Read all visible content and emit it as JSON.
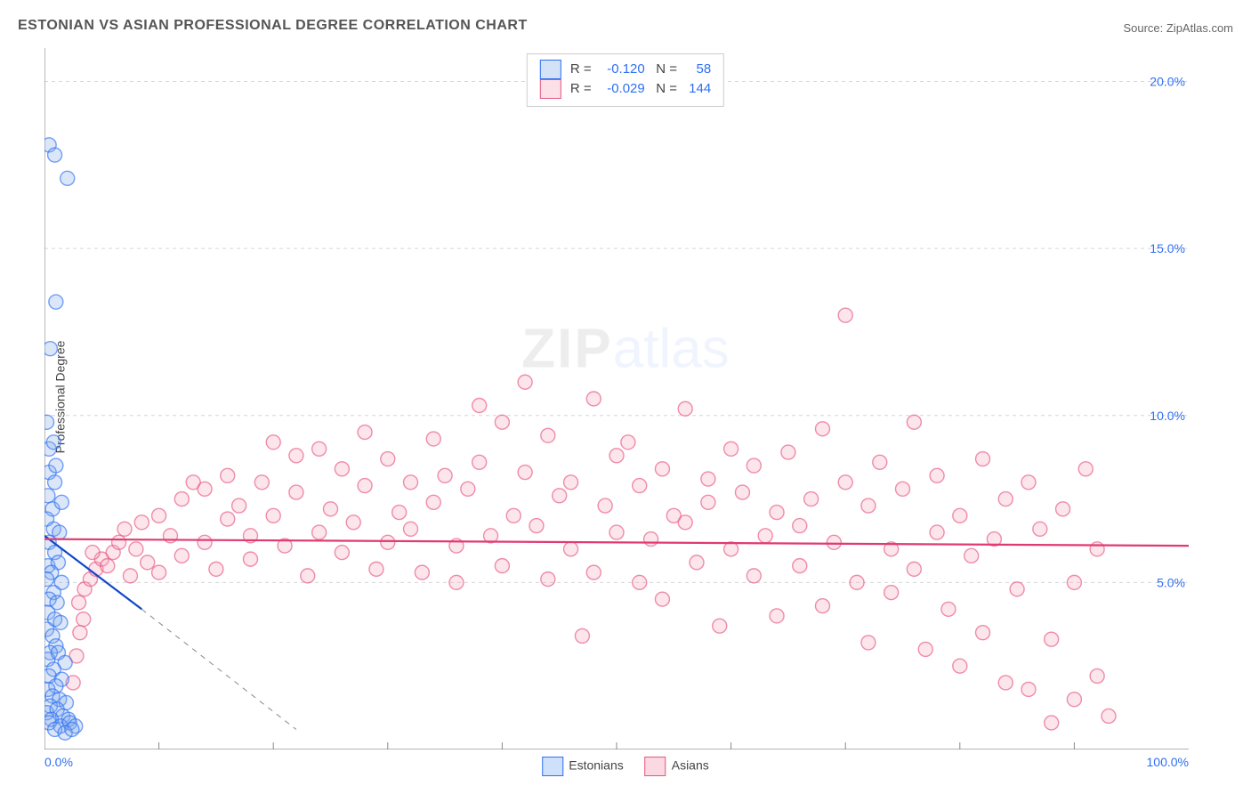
{
  "title": "ESTONIAN VS ASIAN PROFESSIONAL DEGREE CORRELATION CHART",
  "source_label": "Source: ZipAtlas.com",
  "ylabel": "Professional Degree",
  "watermark_zip": "ZIP",
  "watermark_atlas": "atlas",
  "chart": {
    "type": "scatter",
    "background_color": "#ffffff",
    "grid_color": "#d6d6d6",
    "axis_color": "#888888",
    "xlim": [
      0,
      100
    ],
    "ylim": [
      0,
      21
    ],
    "xtick_labels": [
      "0.0%",
      "100.0%"
    ],
    "xtick_positions": [
      0,
      100
    ],
    "xtick_minor": [
      10,
      20,
      30,
      40,
      50,
      60,
      70,
      80,
      90
    ],
    "ytick_labels": [
      "5.0%",
      "10.0%",
      "15.0%",
      "20.0%"
    ],
    "ytick_positions": [
      5,
      10,
      15,
      20
    ],
    "marker_radius": 8,
    "label_fontsize": 14,
    "tick_color": "#2e6ff2",
    "series": [
      {
        "name": "Estonians",
        "fill_color": "#7da9e8",
        "stroke_color": "#2e6ff2",
        "R": "-0.120",
        "N": "58",
        "trend": {
          "x1": 0,
          "y1": 6.4,
          "x2": 8.5,
          "y2": 4.2,
          "color": "#1147c9",
          "width": 2.4
        },
        "trend_dashed": {
          "x1": 8.5,
          "y1": 4.2,
          "x2": 22,
          "y2": 0.6
        },
        "points": [
          [
            0.4,
            18.1
          ],
          [
            0.9,
            17.8
          ],
          [
            2.0,
            17.1
          ],
          [
            1.0,
            13.4
          ],
          [
            0.5,
            12.0
          ],
          [
            0.2,
            9.8
          ],
          [
            0.4,
            9.0
          ],
          [
            0.8,
            9.2
          ],
          [
            0.4,
            8.3
          ],
          [
            1.0,
            8.5
          ],
          [
            0.9,
            8.0
          ],
          [
            0.3,
            7.6
          ],
          [
            0.7,
            7.2
          ],
          [
            1.5,
            7.4
          ],
          [
            0.2,
            6.9
          ],
          [
            0.8,
            6.6
          ],
          [
            1.3,
            6.5
          ],
          [
            0.4,
            6.2
          ],
          [
            0.9,
            5.9
          ],
          [
            0.3,
            5.5
          ],
          [
            1.2,
            5.6
          ],
          [
            0.6,
            5.3
          ],
          [
            0.2,
            5.1
          ],
          [
            1.5,
            5.0
          ],
          [
            0.8,
            4.7
          ],
          [
            0.4,
            4.5
          ],
          [
            1.1,
            4.4
          ],
          [
            0.3,
            4.1
          ],
          [
            0.9,
            3.9
          ],
          [
            1.4,
            3.8
          ],
          [
            0.2,
            3.6
          ],
          [
            0.7,
            3.4
          ],
          [
            1.0,
            3.1
          ],
          [
            0.5,
            2.9
          ],
          [
            0.3,
            2.7
          ],
          [
            1.2,
            2.9
          ],
          [
            1.8,
            2.6
          ],
          [
            0.8,
            2.4
          ],
          [
            0.4,
            2.2
          ],
          [
            1.5,
            2.1
          ],
          [
            1.0,
            1.9
          ],
          [
            0.3,
            1.8
          ],
          [
            0.7,
            1.6
          ],
          [
            1.3,
            1.5
          ],
          [
            1.9,
            1.4
          ],
          [
            0.5,
            1.3
          ],
          [
            0.2,
            1.1
          ],
          [
            1.1,
            1.2
          ],
          [
            1.6,
            1.0
          ],
          [
            2.1,
            0.9
          ],
          [
            0.6,
            0.9
          ],
          [
            0.4,
            0.8
          ],
          [
            1.4,
            0.7
          ],
          [
            2.2,
            0.8
          ],
          [
            2.7,
            0.7
          ],
          [
            0.9,
            0.6
          ],
          [
            1.8,
            0.5
          ],
          [
            2.4,
            0.6
          ]
        ]
      },
      {
        "name": "Asians",
        "fill_color": "#f4a1b8",
        "stroke_color": "#e75480",
        "R": "-0.029",
        "N": "144",
        "trend": {
          "x1": 0,
          "y1": 6.3,
          "x2": 100,
          "y2": 6.1,
          "color": "#e03a72",
          "width": 2.2
        },
        "points": [
          [
            2.5,
            2.0
          ],
          [
            2.8,
            2.8
          ],
          [
            3.1,
            3.5
          ],
          [
            3.4,
            3.9
          ],
          [
            3.0,
            4.4
          ],
          [
            3.5,
            4.8
          ],
          [
            4.0,
            5.1
          ],
          [
            4.5,
            5.4
          ],
          [
            5.0,
            5.7
          ],
          [
            4.2,
            5.9
          ],
          [
            5.5,
            5.5
          ],
          [
            6.0,
            5.9
          ],
          [
            6.5,
            6.2
          ],
          [
            7.0,
            6.6
          ],
          [
            7.5,
            5.2
          ],
          [
            8.0,
            6.0
          ],
          [
            8.5,
            6.8
          ],
          [
            9.0,
            5.6
          ],
          [
            10,
            7.0
          ],
          [
            10,
            5.3
          ],
          [
            11,
            6.4
          ],
          [
            12,
            7.5
          ],
          [
            12,
            5.8
          ],
          [
            13,
            8.0
          ],
          [
            14,
            6.2
          ],
          [
            14,
            7.8
          ],
          [
            15,
            5.4
          ],
          [
            16,
            6.9
          ],
          [
            16,
            8.2
          ],
          [
            17,
            7.3
          ],
          [
            18,
            5.7
          ],
          [
            18,
            6.4
          ],
          [
            19,
            8.0
          ],
          [
            20,
            7.0
          ],
          [
            20,
            9.2
          ],
          [
            21,
            6.1
          ],
          [
            22,
            7.7
          ],
          [
            22,
            8.8
          ],
          [
            23,
            5.2
          ],
          [
            24,
            6.5
          ],
          [
            24,
            9.0
          ],
          [
            25,
            7.2
          ],
          [
            26,
            8.4
          ],
          [
            26,
            5.9
          ],
          [
            27,
            6.8
          ],
          [
            28,
            7.9
          ],
          [
            28,
            9.5
          ],
          [
            29,
            5.4
          ],
          [
            30,
            8.7
          ],
          [
            30,
            6.2
          ],
          [
            31,
            7.1
          ],
          [
            32,
            8.0
          ],
          [
            32,
            6.6
          ],
          [
            33,
            5.3
          ],
          [
            34,
            9.3
          ],
          [
            34,
            7.4
          ],
          [
            35,
            8.2
          ],
          [
            36,
            6.1
          ],
          [
            36,
            5.0
          ],
          [
            37,
            7.8
          ],
          [
            38,
            8.6
          ],
          [
            38,
            10.3
          ],
          [
            39,
            6.4
          ],
          [
            40,
            9.8
          ],
          [
            40,
            5.5
          ],
          [
            41,
            7.0
          ],
          [
            42,
            8.3
          ],
          [
            42,
            11.0
          ],
          [
            43,
            6.7
          ],
          [
            44,
            5.1
          ],
          [
            44,
            9.4
          ],
          [
            45,
            7.6
          ],
          [
            46,
            8.0
          ],
          [
            46,
            6.0
          ],
          [
            47,
            3.4
          ],
          [
            48,
            5.3
          ],
          [
            48,
            10.5
          ],
          [
            49,
            7.3
          ],
          [
            50,
            8.8
          ],
          [
            50,
            6.5
          ],
          [
            51,
            9.2
          ],
          [
            52,
            5.0
          ],
          [
            52,
            7.9
          ],
          [
            53,
            6.3
          ],
          [
            54,
            8.4
          ],
          [
            54,
            4.5
          ],
          [
            55,
            7.0
          ],
          [
            56,
            10.2
          ],
          [
            56,
            6.8
          ],
          [
            57,
            5.6
          ],
          [
            58,
            8.1
          ],
          [
            58,
            7.4
          ],
          [
            59,
            3.7
          ],
          [
            60,
            6.0
          ],
          [
            60,
            9.0
          ],
          [
            61,
            7.7
          ],
          [
            62,
            5.2
          ],
          [
            62,
            8.5
          ],
          [
            63,
            6.4
          ],
          [
            64,
            7.1
          ],
          [
            64,
            4.0
          ],
          [
            65,
            8.9
          ],
          [
            66,
            6.7
          ],
          [
            66,
            5.5
          ],
          [
            67,
            7.5
          ],
          [
            68,
            9.6
          ],
          [
            68,
            4.3
          ],
          [
            69,
            6.2
          ],
          [
            70,
            8.0
          ],
          [
            70,
            13.0
          ],
          [
            71,
            5.0
          ],
          [
            72,
            7.3
          ],
          [
            72,
            3.2
          ],
          [
            73,
            8.6
          ],
          [
            74,
            6.0
          ],
          [
            74,
            4.7
          ],
          [
            75,
            7.8
          ],
          [
            76,
            5.4
          ],
          [
            76,
            9.8
          ],
          [
            77,
            3.0
          ],
          [
            78,
            6.5
          ],
          [
            78,
            8.2
          ],
          [
            79,
            4.2
          ],
          [
            80,
            7.0
          ],
          [
            80,
            2.5
          ],
          [
            81,
            5.8
          ],
          [
            82,
            8.7
          ],
          [
            82,
            3.5
          ],
          [
            83,
            6.3
          ],
          [
            84,
            7.5
          ],
          [
            84,
            2.0
          ],
          [
            85,
            4.8
          ],
          [
            86,
            8.0
          ],
          [
            86,
            1.8
          ],
          [
            87,
            6.6
          ],
          [
            88,
            3.3
          ],
          [
            88,
            0.8
          ],
          [
            89,
            7.2
          ],
          [
            90,
            5.0
          ],
          [
            90,
            1.5
          ],
          [
            91,
            8.4
          ],
          [
            92,
            2.2
          ],
          [
            92,
            6.0
          ],
          [
            93,
            1.0
          ]
        ]
      }
    ]
  },
  "top_legend": {
    "label_R": "R =",
    "label_N": "N ="
  },
  "bottom_legend": {
    "items": [
      {
        "label": "Estonians",
        "fill": "#cfe0fb",
        "border": "#2e6ff2"
      },
      {
        "label": "Asians",
        "fill": "#fbd9e3",
        "border": "#e75480"
      }
    ]
  }
}
